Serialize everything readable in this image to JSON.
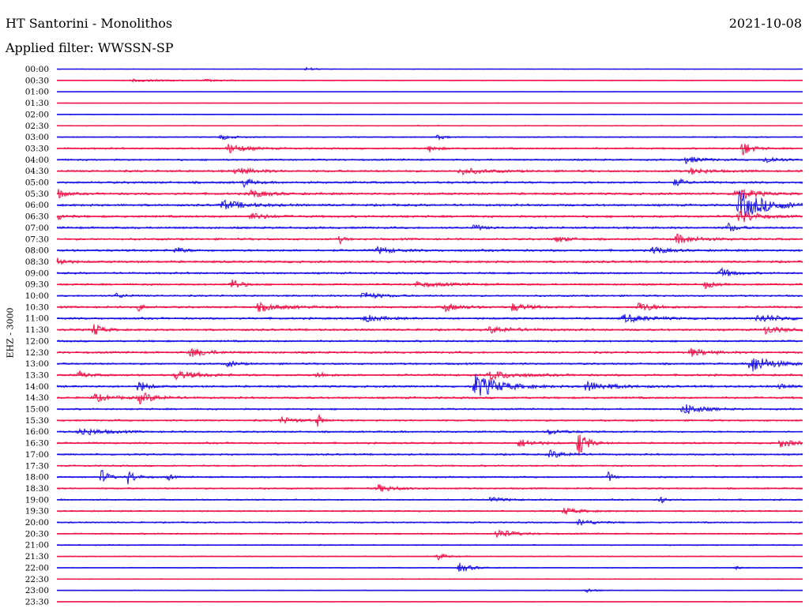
{
  "header": {
    "title": "HT Santorini - Monolithos",
    "date": "2021-10-08",
    "filter": "Applied filter: WWSSN-SP"
  },
  "chart_data": {
    "type": "line",
    "title": "HT Santorini - Monolithos",
    "date": "2021-10-08",
    "filter": "WWSSN-SP",
    "ylabel": "EHZ - 3000",
    "trace_colors": [
      "#1a12e6",
      "#f0154a"
    ],
    "row_labels": [
      "00:00",
      "00:30",
      "01:00",
      "01:30",
      "02:00",
      "02:30",
      "03:00",
      "03:30",
      "04:00",
      "04:30",
      "05:00",
      "05:30",
      "06:00",
      "06:30",
      "07:00",
      "07:30",
      "08:00",
      "08:30",
      "09:00",
      "09:30",
      "10:00",
      "10:30",
      "11:00",
      "11:30",
      "12:00",
      "12:30",
      "13:00",
      "13:30",
      "14:00",
      "14:30",
      "15:00",
      "15:30",
      "16:00",
      "16:30",
      "17:00",
      "17:30",
      "18:00",
      "18:30",
      "19:00",
      "19:30",
      "20:00",
      "20:30",
      "21:00",
      "21:30",
      "22:00",
      "22:30",
      "23:00",
      "23:30"
    ],
    "noise_level": [
      0.4,
      0.5,
      0.4,
      0.4,
      0.6,
      0.6,
      0.8,
      1.2,
      1.2,
      1.4,
      1.5,
      1.5,
      1.5,
      1.5,
      1.4,
      1.4,
      1.5,
      1.5,
      1.3,
      1.3,
      1.2,
      1.4,
      1.4,
      1.4,
      1.3,
      1.4,
      1.3,
      1.4,
      1.4,
      1.4,
      1.2,
      1.2,
      1.2,
      1.2,
      1.2,
      1.1,
      1.1,
      1.1,
      1.0,
      1.0,
      1.0,
      1.0,
      0.8,
      0.7,
      0.6,
      0.6,
      0.5,
      0.5
    ],
    "events": [
      {
        "row": 0,
        "t": 0.335,
        "amp": 2,
        "dur": 0.012
      },
      {
        "row": 1,
        "t": 0.1,
        "amp": 1.5,
        "dur": 0.05
      },
      {
        "row": 1,
        "t": 0.2,
        "amp": 1.2,
        "dur": 0.02
      },
      {
        "row": 6,
        "t": 0.22,
        "amp": 3,
        "dur": 0.015
      },
      {
        "row": 6,
        "t": 0.51,
        "amp": 3,
        "dur": 0.01
      },
      {
        "row": 7,
        "t": 0.23,
        "amp": 6,
        "dur": 0.02
      },
      {
        "row": 7,
        "t": 0.5,
        "amp": 4,
        "dur": 0.01
      },
      {
        "row": 7,
        "t": 0.92,
        "amp": 10,
        "dur": 0.01
      },
      {
        "row": 8,
        "t": 0.84,
        "amp": 5,
        "dur": 0.02
      },
      {
        "row": 8,
        "t": 0.95,
        "amp": 5,
        "dur": 0.015
      },
      {
        "row": 9,
        "t": 0.24,
        "amp": 5,
        "dur": 0.02
      },
      {
        "row": 9,
        "t": 0.54,
        "amp": 4,
        "dur": 0.03
      },
      {
        "row": 9,
        "t": 0.85,
        "amp": 4,
        "dur": 0.02
      },
      {
        "row": 10,
        "t": 0.25,
        "amp": 6,
        "dur": 0.01
      },
      {
        "row": 10,
        "t": 0.83,
        "amp": 5,
        "dur": 0.01
      },
      {
        "row": 11,
        "t": 0.0,
        "amp": 8,
        "dur": 0.008
      },
      {
        "row": 11,
        "t": 0.26,
        "amp": 5,
        "dur": 0.02
      },
      {
        "row": 11,
        "t": 0.91,
        "amp": 10,
        "dur": 0.02
      },
      {
        "row": 12,
        "t": 0.22,
        "amp": 6,
        "dur": 0.03
      },
      {
        "row": 12,
        "t": 0.915,
        "amp": 18,
        "dur": 0.035
      },
      {
        "row": 13,
        "t": 0.0,
        "amp": 4,
        "dur": 0.01
      },
      {
        "row": 13,
        "t": 0.26,
        "amp": 4,
        "dur": 0.02
      },
      {
        "row": 13,
        "t": 0.915,
        "amp": 9,
        "dur": 0.02
      },
      {
        "row": 14,
        "t": 0.56,
        "amp": 4,
        "dur": 0.01
      },
      {
        "row": 14,
        "t": 0.9,
        "amp": 6,
        "dur": 0.01
      },
      {
        "row": 15,
        "t": 0.38,
        "amp": 5,
        "dur": 0.005
      },
      {
        "row": 15,
        "t": 0.67,
        "amp": 4,
        "dur": 0.015
      },
      {
        "row": 15,
        "t": 0.83,
        "amp": 6,
        "dur": 0.025
      },
      {
        "row": 16,
        "t": 0.16,
        "amp": 4,
        "dur": 0.01
      },
      {
        "row": 16,
        "t": 0.43,
        "amp": 4,
        "dur": 0.02
      },
      {
        "row": 16,
        "t": 0.8,
        "amp": 5,
        "dur": 0.015
      },
      {
        "row": 17,
        "t": 0.0,
        "amp": 6,
        "dur": 0.01
      },
      {
        "row": 18,
        "t": 0.89,
        "amp": 6,
        "dur": 0.015
      },
      {
        "row": 19,
        "t": 0.235,
        "amp": 8,
        "dur": 0.01
      },
      {
        "row": 19,
        "t": 0.48,
        "amp": 3,
        "dur": 0.04
      },
      {
        "row": 19,
        "t": 0.87,
        "amp": 5,
        "dur": 0.01
      },
      {
        "row": 20,
        "t": 0.08,
        "amp": 3,
        "dur": 0.01
      },
      {
        "row": 20,
        "t": 0.41,
        "amp": 5,
        "dur": 0.02
      },
      {
        "row": 21,
        "t": 0.11,
        "amp": 6,
        "dur": 0.005
      },
      {
        "row": 21,
        "t": 0.27,
        "amp": 5,
        "dur": 0.03
      },
      {
        "row": 21,
        "t": 0.52,
        "amp": 5,
        "dur": 0.02
      },
      {
        "row": 21,
        "t": 0.61,
        "amp": 5,
        "dur": 0.02
      },
      {
        "row": 21,
        "t": 0.78,
        "amp": 6,
        "dur": 0.02
      },
      {
        "row": 22,
        "t": 0.41,
        "amp": 5,
        "dur": 0.02
      },
      {
        "row": 22,
        "t": 0.76,
        "amp": 5,
        "dur": 0.03
      },
      {
        "row": 22,
        "t": 0.94,
        "amp": 5,
        "dur": 0.03
      },
      {
        "row": 23,
        "t": 0.05,
        "amp": 8,
        "dur": 0.01
      },
      {
        "row": 23,
        "t": 0.58,
        "amp": 4,
        "dur": 0.03
      },
      {
        "row": 23,
        "t": 0.95,
        "amp": 5,
        "dur": 0.02
      },
      {
        "row": 25,
        "t": 0.18,
        "amp": 6,
        "dur": 0.02
      },
      {
        "row": 25,
        "t": 0.85,
        "amp": 5,
        "dur": 0.02
      },
      {
        "row": 26,
        "t": 0.23,
        "amp": 4,
        "dur": 0.01
      },
      {
        "row": 26,
        "t": 0.93,
        "amp": 12,
        "dur": 0.025
      },
      {
        "row": 27,
        "t": 0.03,
        "amp": 5,
        "dur": 0.01
      },
      {
        "row": 27,
        "t": 0.16,
        "amp": 5,
        "dur": 0.03
      },
      {
        "row": 27,
        "t": 0.35,
        "amp": 4,
        "dur": 0.01
      },
      {
        "row": 27,
        "t": 0.58,
        "amp": 6,
        "dur": 0.03
      },
      {
        "row": 28,
        "t": 0.11,
        "amp": 8,
        "dur": 0.01
      },
      {
        "row": 28,
        "t": 0.56,
        "amp": 16,
        "dur": 0.03
      },
      {
        "row": 28,
        "t": 0.71,
        "amp": 6,
        "dur": 0.03
      },
      {
        "row": 28,
        "t": 0.97,
        "amp": 4,
        "dur": 0.01
      },
      {
        "row": 29,
        "t": 0.05,
        "amp": 5,
        "dur": 0.02
      },
      {
        "row": 29,
        "t": 0.11,
        "amp": 7,
        "dur": 0.02
      },
      {
        "row": 30,
        "t": 0.84,
        "amp": 8,
        "dur": 0.02
      },
      {
        "row": 31,
        "t": 0.3,
        "amp": 4,
        "dur": 0.02
      },
      {
        "row": 31,
        "t": 0.35,
        "amp": 8,
        "dur": 0.005
      },
      {
        "row": 32,
        "t": 0.03,
        "amp": 5,
        "dur": 0.03
      },
      {
        "row": 32,
        "t": 0.66,
        "amp": 3,
        "dur": 0.02
      },
      {
        "row": 33,
        "t": 0.62,
        "amp": 5,
        "dur": 0.02
      },
      {
        "row": 33,
        "t": 0.7,
        "amp": 18,
        "dur": 0.01
      },
      {
        "row": 33,
        "t": 0.97,
        "amp": 5,
        "dur": 0.02
      },
      {
        "row": 34,
        "t": 0.66,
        "amp": 5,
        "dur": 0.02
      },
      {
        "row": 36,
        "t": 0.06,
        "amp": 10,
        "dur": 0.008
      },
      {
        "row": 36,
        "t": 0.095,
        "amp": 9,
        "dur": 0.01
      },
      {
        "row": 36,
        "t": 0.15,
        "amp": 4,
        "dur": 0.005
      },
      {
        "row": 36,
        "t": 0.74,
        "amp": 7,
        "dur": 0.005
      },
      {
        "row": 37,
        "t": 0.43,
        "amp": 5,
        "dur": 0.02
      },
      {
        "row": 38,
        "t": 0.58,
        "amp": 3,
        "dur": 0.02
      },
      {
        "row": 38,
        "t": 0.81,
        "amp": 5,
        "dur": 0.005
      },
      {
        "row": 39,
        "t": 0.68,
        "amp": 4,
        "dur": 0.02
      },
      {
        "row": 40,
        "t": 0.7,
        "amp": 4,
        "dur": 0.02
      },
      {
        "row": 41,
        "t": 0.59,
        "amp": 6,
        "dur": 0.02
      },
      {
        "row": 43,
        "t": 0.51,
        "amp": 5,
        "dur": 0.01
      },
      {
        "row": 44,
        "t": 0.54,
        "amp": 6,
        "dur": 0.015
      },
      {
        "row": 44,
        "t": 0.91,
        "amp": 3,
        "dur": 0.005
      },
      {
        "row": 46,
        "t": 0.71,
        "amp": 3,
        "dur": 0.01
      }
    ]
  }
}
